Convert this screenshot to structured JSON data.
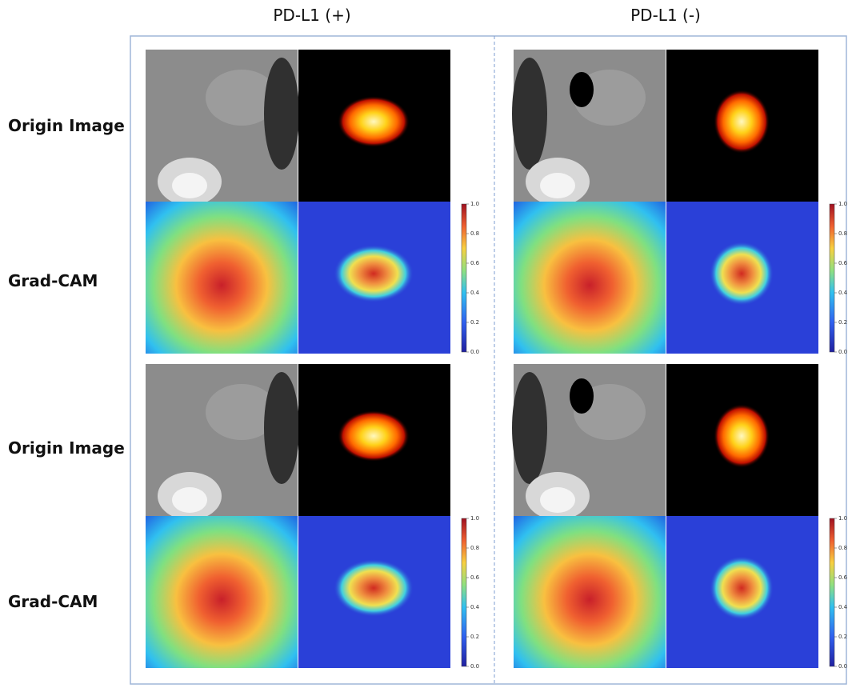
{
  "column_headers": [
    "PD-L1 (+)",
    "PD-L1 (-)"
  ],
  "row_labels": [
    "Origin Image",
    "Grad-CAM",
    "Origin Image",
    "Grad-CAM"
  ],
  "colorbars": [
    {
      "ticks": [
        "0.0",
        "0.2",
        "0.4",
        "0.6",
        "0.8",
        "1.0"
      ]
    },
    {
      "ticks": [
        "0.0",
        "0.2",
        "0.4",
        "0.6",
        "0.8",
        "1.0"
      ]
    },
    {
      "ticks": [
        "0.0",
        "0.2",
        "0.4",
        "0.6",
        "0.8",
        "1.0"
      ]
    },
    {
      "ticks": [
        "0.0",
        "0.2",
        "0.4",
        "0.6",
        "0.8",
        "1.0"
      ]
    }
  ]
}
